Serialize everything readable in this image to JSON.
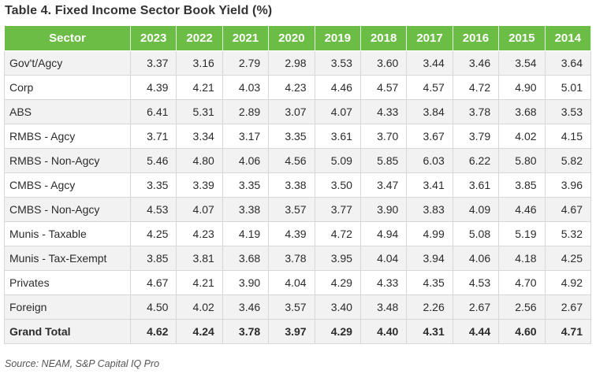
{
  "title": "Table 4. Fixed Income Sector Book Yield (%)",
  "source": "Source: NEAM, S&P Capital IQ Pro",
  "columns": [
    "Sector",
    "2023",
    "2022",
    "2021",
    "2020",
    "2019",
    "2018",
    "2017",
    "2016",
    "2015",
    "2014"
  ],
  "rows": [
    {
      "sector": "Gov't/Agcy",
      "values": [
        "3.37",
        "3.16",
        "2.79",
        "2.98",
        "3.53",
        "3.60",
        "3.44",
        "3.46",
        "3.54",
        "3.64"
      ]
    },
    {
      "sector": "Corp",
      "values": [
        "4.39",
        "4.21",
        "4.03",
        "4.23",
        "4.46",
        "4.57",
        "4.57",
        "4.72",
        "4.90",
        "5.01"
      ]
    },
    {
      "sector": "ABS",
      "values": [
        "6.41",
        "5.31",
        "2.89",
        "3.07",
        "4.07",
        "4.33",
        "3.84",
        "3.78",
        "3.68",
        "3.53"
      ]
    },
    {
      "sector": "RMBS - Agcy",
      "values": [
        "3.71",
        "3.34",
        "3.17",
        "3.35",
        "3.61",
        "3.70",
        "3.67",
        "3.79",
        "4.02",
        "4.15"
      ]
    },
    {
      "sector": "RMBS - Non-Agcy",
      "values": [
        "5.46",
        "4.80",
        "4.06",
        "4.56",
        "5.09",
        "5.85",
        "6.03",
        "6.22",
        "5.80",
        "5.82"
      ]
    },
    {
      "sector": "CMBS - Agcy",
      "values": [
        "3.35",
        "3.39",
        "3.35",
        "3.38",
        "3.50",
        "3.47",
        "3.41",
        "3.61",
        "3.85",
        "3.96"
      ]
    },
    {
      "sector": "CMBS - Non-Agcy",
      "values": [
        "4.53",
        "4.07",
        "3.38",
        "3.57",
        "3.77",
        "3.90",
        "3.83",
        "4.09",
        "4.46",
        "4.67"
      ]
    },
    {
      "sector": "Munis - Taxable",
      "values": [
        "4.25",
        "4.23",
        "4.19",
        "4.39",
        "4.72",
        "4.94",
        "4.99",
        "5.08",
        "5.19",
        "5.32"
      ]
    },
    {
      "sector": "Munis - Tax-Exempt",
      "values": [
        "3.85",
        "3.81",
        "3.68",
        "3.78",
        "3.95",
        "4.04",
        "3.94",
        "4.06",
        "4.18",
        "4.25"
      ]
    },
    {
      "sector": "Privates",
      "values": [
        "4.67",
        "4.21",
        "3.90",
        "4.04",
        "4.29",
        "4.33",
        "4.35",
        "4.53",
        "4.70",
        "4.92"
      ]
    },
    {
      "sector": "Foreign",
      "values": [
        "4.50",
        "4.02",
        "3.46",
        "3.57",
        "3.40",
        "3.48",
        "2.26",
        "2.67",
        "2.56",
        "2.67"
      ]
    },
    {
      "sector": "Grand Total",
      "values": [
        "4.62",
        "4.24",
        "3.78",
        "3.97",
        "4.29",
        "4.40",
        "4.31",
        "4.44",
        "4.60",
        "4.71"
      ],
      "total": true
    }
  ],
  "colors": {
    "header_bg": "#6cbd45",
    "stripe": "#f2f2f2"
  }
}
